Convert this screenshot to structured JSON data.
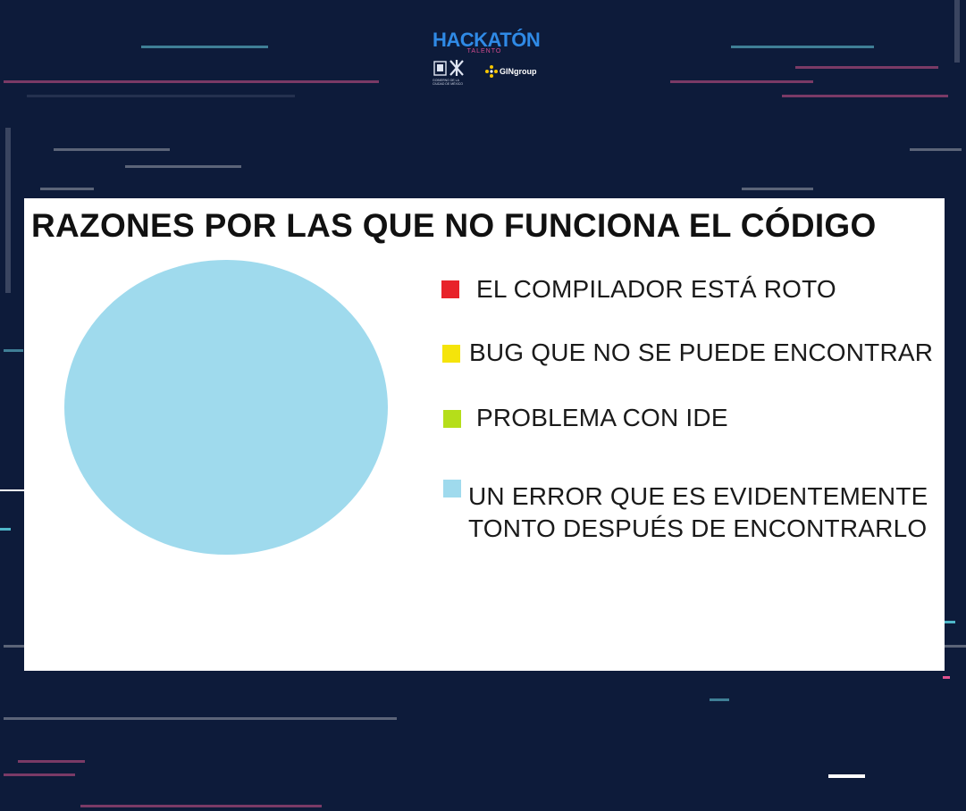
{
  "header": {
    "brand": "HACKATÓN",
    "brand_sub": "TALENTO",
    "gov_caption": "GOBIERNO DE LA CIUDAD DE MÉXICO",
    "partner": "GINgroup"
  },
  "colors": {
    "background": "#0d1b3a",
    "brand_blue": "#2f8ae6",
    "brand_pink": "#d34b8f",
    "card": "#ffffff"
  },
  "chart_data": {
    "type": "pie",
    "title": "RAZONES POR LAS QUE NO FUNCIONA EL CÓDIGO",
    "legend_position": "right",
    "categories": [
      "EL COMPILADOR ESTÁ ROTO",
      "BUG QUE NO SE PUEDE ENCONTRAR",
      "PROBLEMA CON IDE",
      "UN ERROR QUE ES EVIDENTEMENTE TONTO DESPUÉS DE ENCONTRARLO"
    ],
    "values": [
      0,
      0,
      0,
      100
    ],
    "colors": [
      "#e8232a",
      "#f5e40a",
      "#b5de1a",
      "#9fdaed"
    ]
  }
}
